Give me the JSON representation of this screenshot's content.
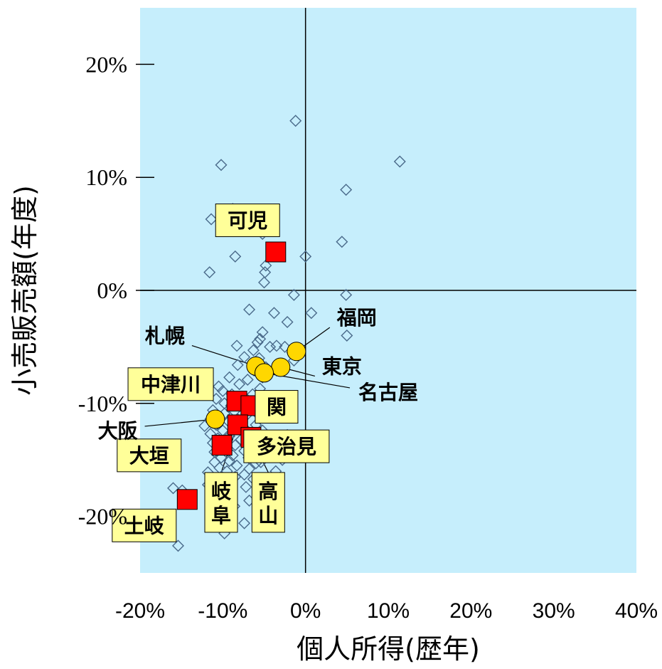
{
  "chart_data": {
    "type": "scatter",
    "xlabel": "個人所得(歴年)",
    "ylabel": "小売販売額(年度)",
    "xlim": [
      -0.2,
      0.4
    ],
    "ylim": [
      -0.25,
      0.25
    ],
    "x_ticks": [
      -0.2,
      -0.1,
      0.0,
      0.1,
      0.2,
      0.3,
      0.4
    ],
    "x_tick_labels": [
      "-20%",
      "-10%",
      "0%",
      "10%",
      "20%",
      "30%",
      "40%"
    ],
    "y_ticks": [
      -0.2,
      -0.1,
      0.0,
      0.1,
      0.2
    ],
    "y_tick_labels": [
      "-20%",
      "-10%",
      "0%",
      "10%",
      "20%"
    ],
    "background": "#c6eefc",
    "grid": false,
    "series": [
      {
        "marker": "diamond",
        "color": "#4a6a8a",
        "points": [
          [
            -0.012,
            0.15
          ],
          [
            0.114,
            0.114
          ],
          [
            -0.102,
            0.111
          ],
          [
            0.049,
            0.089
          ],
          [
            -0.088,
            0.072
          ],
          [
            -0.114,
            0.063
          ],
          [
            -0.078,
            0.062
          ],
          [
            -0.056,
            0.057
          ],
          [
            -0.062,
            0.055
          ],
          [
            -0.052,
            0.05
          ],
          [
            0.044,
            0.043
          ],
          [
            -0.085,
            0.03
          ],
          [
            0.0,
            0.03
          ],
          [
            -0.048,
            0.022
          ],
          [
            -0.116,
            0.016
          ],
          [
            -0.049,
            0.016
          ],
          [
            -0.05,
            0.007
          ],
          [
            -0.014,
            -0.004
          ],
          [
            0.049,
            -0.004
          ],
          [
            -0.068,
            -0.017
          ],
          [
            -0.038,
            -0.02
          ],
          [
            0.007,
            -0.02
          ],
          [
            -0.022,
            -0.028
          ],
          [
            -0.052,
            -0.037
          ],
          [
            0.05,
            -0.04
          ],
          [
            -0.055,
            -0.043
          ],
          [
            -0.058,
            -0.046
          ],
          [
            -0.083,
            -0.049
          ],
          [
            -0.043,
            -0.05
          ],
          [
            -0.035,
            -0.049
          ],
          [
            -0.025,
            -0.05
          ],
          [
            -0.063,
            -0.053
          ],
          [
            -0.016,
            -0.055
          ],
          [
            -0.074,
            -0.059
          ],
          [
            -0.056,
            -0.06
          ],
          [
            -0.014,
            -0.062
          ],
          [
            -0.082,
            -0.066
          ],
          [
            -0.048,
            -0.068
          ],
          [
            -0.035,
            -0.071
          ],
          [
            -0.062,
            -0.071
          ],
          [
            -0.092,
            -0.077
          ],
          [
            -0.07,
            -0.079
          ],
          [
            -0.052,
            -0.077
          ],
          [
            -0.08,
            -0.083
          ],
          [
            -0.105,
            -0.085
          ],
          [
            -0.055,
            -0.087
          ],
          [
            -0.1,
            -0.089
          ],
          [
            -0.089,
            -0.092
          ],
          [
            -0.064,
            -0.092
          ],
          [
            -0.108,
            -0.096
          ],
          [
            -0.082,
            -0.097
          ],
          [
            -0.098,
            -0.1
          ],
          [
            -0.09,
            -0.102
          ],
          [
            -0.072,
            -0.104
          ],
          [
            -0.112,
            -0.106
          ],
          [
            -0.086,
            -0.107
          ],
          [
            -0.06,
            -0.108
          ],
          [
            -0.098,
            -0.109
          ],
          [
            -0.072,
            -0.111
          ],
          [
            -0.115,
            -0.114
          ],
          [
            -0.082,
            -0.114
          ],
          [
            -0.093,
            -0.116
          ],
          [
            -0.108,
            -0.119
          ],
          [
            -0.06,
            -0.119
          ],
          [
            -0.122,
            -0.12
          ],
          [
            -0.075,
            -0.121
          ],
          [
            -0.086,
            -0.123
          ],
          [
            -0.1,
            -0.124
          ],
          [
            -0.052,
            -0.124
          ],
          [
            -0.115,
            -0.127
          ],
          [
            -0.068,
            -0.128
          ],
          [
            -0.092,
            -0.129
          ],
          [
            -0.106,
            -0.131
          ],
          [
            -0.078,
            -0.132
          ],
          [
            -0.06,
            -0.133
          ],
          [
            -0.112,
            -0.135
          ],
          [
            -0.085,
            -0.137
          ],
          [
            -0.066,
            -0.138
          ],
          [
            -0.098,
            -0.14
          ],
          [
            -0.074,
            -0.142
          ],
          [
            -0.11,
            -0.143
          ],
          [
            -0.062,
            -0.144
          ],
          [
            -0.088,
            -0.146
          ],
          [
            -0.102,
            -0.148
          ],
          [
            -0.069,
            -0.148
          ],
          [
            -0.092,
            -0.151
          ],
          [
            -0.11,
            -0.152
          ],
          [
            -0.06,
            -0.153
          ],
          [
            -0.083,
            -0.155
          ],
          [
            -0.104,
            -0.157
          ],
          [
            -0.068,
            -0.158
          ],
          [
            -0.095,
            -0.16
          ],
          [
            -0.118,
            -0.161
          ],
          [
            -0.074,
            -0.163
          ],
          [
            -0.085,
            -0.165
          ],
          [
            -0.108,
            -0.166
          ],
          [
            -0.063,
            -0.167
          ],
          [
            -0.096,
            -0.17
          ],
          [
            -0.118,
            -0.172
          ],
          [
            -0.072,
            -0.174
          ],
          [
            -0.16,
            -0.175
          ],
          [
            -0.149,
            -0.177
          ],
          [
            -0.104,
            -0.177
          ],
          [
            -0.112,
            -0.185
          ],
          [
            -0.068,
            -0.186
          ],
          [
            -0.086,
            -0.191
          ],
          [
            -0.054,
            -0.193
          ],
          [
            -0.101,
            -0.198
          ],
          [
            -0.094,
            -0.205
          ],
          [
            -0.074,
            -0.206
          ],
          [
            -0.098,
            -0.215
          ],
          [
            -0.154,
            -0.226
          ],
          [
            -0.042,
            -0.204
          ],
          [
            -0.028,
            -0.15
          ],
          [
            -0.036,
            -0.16
          ],
          [
            -0.054,
            -0.152
          ],
          [
            -0.022,
            -0.128
          ]
        ]
      },
      {
        "marker": "square",
        "color": "#ff0000",
        "points": [
          [
            -0.036,
            0.034
          ],
          [
            -0.083,
            -0.098
          ],
          [
            -0.066,
            -0.102
          ],
          [
            -0.048,
            -0.103
          ],
          [
            -0.082,
            -0.119
          ],
          [
            -0.066,
            -0.13
          ],
          [
            -0.101,
            -0.137
          ],
          [
            -0.143,
            -0.185
          ]
        ]
      },
      {
        "marker": "circle",
        "color": "#ffd700",
        "points": [
          [
            -0.011,
            -0.054
          ],
          [
            -0.06,
            -0.067
          ],
          [
            -0.03,
            -0.068
          ],
          [
            -0.05,
            -0.073
          ],
          [
            -0.109,
            -0.114
          ]
        ]
      }
    ],
    "annotations": [
      {
        "text": "可児",
        "boxed": true,
        "x": -0.07,
        "y": 0.062,
        "point": [
          -0.036,
          0.034
        ],
        "leader": false
      },
      {
        "text": "中津川",
        "boxed": true,
        "x": -0.163,
        "y": -0.083,
        "point": [
          -0.083,
          -0.098
        ],
        "leader": false
      },
      {
        "text": "関",
        "boxed": true,
        "x": -0.035,
        "y": -0.103,
        "point": [
          -0.048,
          -0.103
        ],
        "leader": false
      },
      {
        "text": "多治見",
        "boxed": true,
        "x": -0.023,
        "y": -0.138,
        "point": [
          -0.066,
          -0.13
        ],
        "leader": true
      },
      {
        "text": "大垣",
        "boxed": true,
        "x": -0.189,
        "y": -0.146,
        "point": [
          -0.101,
          -0.137
        ],
        "leader": false
      },
      {
        "text": "岐阜",
        "boxed": true,
        "x": -0.102,
        "y": -0.175,
        "point": [
          -0.082,
          -0.119
        ],
        "leader": true,
        "vertical": true
      },
      {
        "text": "高山",
        "boxed": true,
        "x": -0.045,
        "y": -0.175,
        "point": [
          -0.066,
          -0.13
        ],
        "leader": true,
        "vertical": true
      },
      {
        "text": "土岐",
        "boxed": true,
        "x": -0.195,
        "y": -0.208,
        "point": [
          -0.143,
          -0.185
        ],
        "leader": false
      },
      {
        "text": "札幌",
        "boxed": false,
        "x": -0.17,
        "y": -0.04,
        "point": [
          -0.06,
          -0.067
        ],
        "leader": true
      },
      {
        "text": "福岡",
        "boxed": false,
        "x": 0.062,
        "y": -0.024,
        "point": [
          -0.011,
          -0.054
        ],
        "leader": true
      },
      {
        "text": "東京",
        "boxed": false,
        "x": 0.044,
        "y": -0.067,
        "point": [
          -0.03,
          -0.068
        ],
        "leader": true
      },
      {
        "text": "名古屋",
        "boxed": false,
        "x": 0.1,
        "y": -0.09,
        "point": [
          -0.05,
          -0.073
        ],
        "leader": true
      },
      {
        "text": "大阪",
        "boxed": false,
        "x": -0.227,
        "y": -0.124,
        "point": [
          -0.109,
          -0.114
        ],
        "leader": true
      }
    ]
  }
}
